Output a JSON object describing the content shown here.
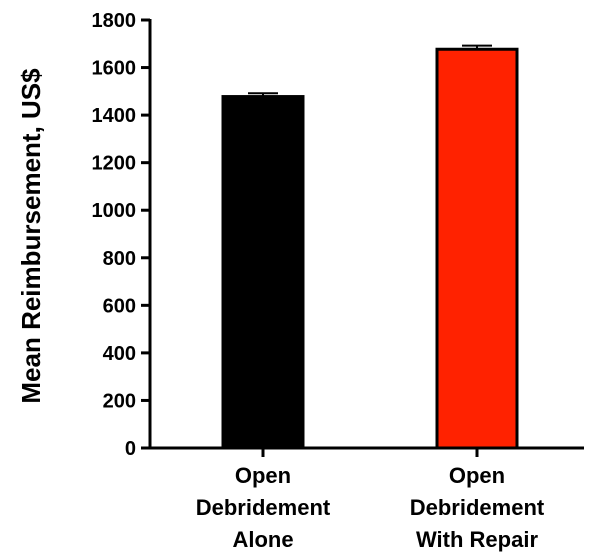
{
  "chart_data": {
    "type": "bar",
    "title": "",
    "xlabel": "",
    "ylabel": "Mean Reimbursement, US$",
    "ylim": [
      0,
      1800
    ],
    "yticks": [
      0,
      200,
      400,
      600,
      800,
      1000,
      1200,
      1400,
      1600,
      1800
    ],
    "grid": false,
    "categories": [
      [
        "Open",
        "Debridement",
        "Alone"
      ],
      [
        "Open",
        "Debridement",
        "With Repair"
      ]
    ],
    "values": [
      1478,
      1677
    ],
    "error": [
      14,
      15
    ],
    "colors": [
      "#000000",
      "#ff2200"
    ]
  }
}
